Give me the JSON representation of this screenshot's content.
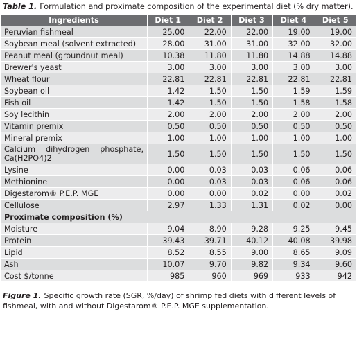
{
  "table": {
    "caption": {
      "label": "Table 1.",
      "text": "Formulation and proximate composition of the experimental diet (% dry matter)."
    },
    "columns": [
      "Ingredients",
      "Diet 1",
      "Diet 2",
      "Diet 3",
      "Diet 4",
      "Diet 5"
    ],
    "rows": [
      [
        "Peruvian fishmeal",
        "25.00",
        "22.00",
        "22.00",
        "19.00",
        "19.00"
      ],
      [
        "Soybean meal (solvent extracted)",
        "28.00",
        "31.00",
        "31.00",
        "32.00",
        "32.00"
      ],
      [
        "Peanut meal (groundnut meal)",
        "10.38",
        "11.80",
        "11.80",
        "14.88",
        "14.88"
      ],
      [
        "Brewer's yeast",
        "3.00",
        "3.00",
        "3.00",
        "3.00",
        "3.00"
      ],
      [
        "Wheat flour",
        "22.81",
        "22.81",
        "22.81",
        "22.81",
        "22.81"
      ],
      [
        "Soybean oil",
        "1.42",
        "1.50",
        "1.50",
        "1.59",
        "1.59"
      ],
      [
        "Fish oil",
        "1.42",
        "1.50",
        "1.50",
        "1.58",
        "1.58"
      ],
      [
        "Soy lecithin",
        "2.00",
        "2.00",
        "2.00",
        "2.00",
        "2.00"
      ],
      [
        "Vitamin premix",
        "0.50",
        "0.50",
        "0.50",
        "0.50",
        "0.50"
      ],
      [
        "Mineral premix",
        "1.00",
        "1.00",
        "1.00",
        "1.00",
        "1.00"
      ],
      [
        "Calcium dihydrogen phosphate, Ca(H2PO4)2",
        "1.50",
        "1.50",
        "1.50",
        "1.50",
        "1.50"
      ],
      [
        "Lysine",
        "0.00",
        "0.03",
        "0.03",
        "0.06",
        "0.06"
      ],
      [
        "Methionine",
        "0.00",
        "0.03",
        "0.03",
        "0.06",
        "0.06"
      ],
      [
        "Digestarom® P.E.P. MGE",
        "0.00",
        "0.00",
        "0.02",
        "0.00",
        "0.02"
      ],
      [
        "Cellulose",
        "2.97",
        "1.33",
        "1.31",
        "0.02",
        "0.00"
      ]
    ],
    "section": "Proximate composition (%)",
    "proximate_rows": [
      [
        "Moisture",
        "9.04",
        "8.90",
        "9.28",
        "9.25",
        "9.45"
      ],
      [
        "Protein",
        "39.43",
        "39.71",
        "40.12",
        "40.08",
        "39.98"
      ],
      [
        "Lipid",
        "8.52",
        "8.55",
        "9.00",
        "8.65",
        "9.09"
      ],
      [
        "Ash",
        "10.07",
        "9.70",
        "9.82",
        "9.34",
        "9.60"
      ],
      [
        "Cost $/tonne",
        "985",
        "960",
        "969",
        "933",
        "942"
      ]
    ]
  },
  "figure_caption": {
    "label": "Figure 1.",
    "text": "Specific growth rate (SGR, %/day) of shrimp fed diets with different levels of fishmeal, with and without Digestarom® P.E.P. MGE supplementation."
  }
}
